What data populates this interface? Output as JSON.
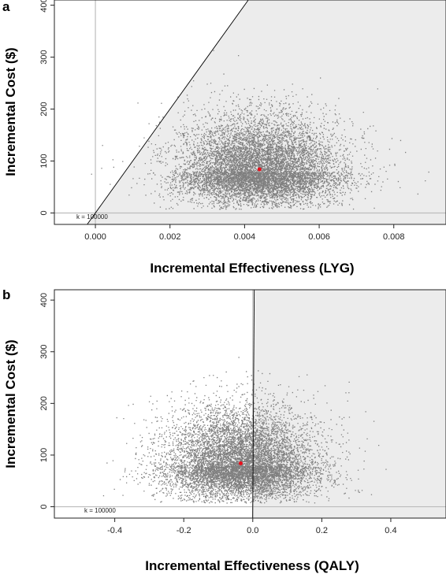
{
  "colors": {
    "points": "#7f7f7f",
    "mean_point": "#e8101c",
    "acceptability_fill": "#ececec",
    "zero_line": "#bdbdbd",
    "threshold_line": "#000000"
  },
  "chart_data": [
    {
      "type": "scatter",
      "panel_label": "a",
      "xlabel": "Incremental Effectiveness (LYG)",
      "ylabel": "Incremental Cost ($)",
      "xlim": [
        -0.0011,
        0.0094
      ],
      "ylim": [
        -22,
        410
      ],
      "x_ticks": [
        0.0,
        0.002,
        0.004,
        0.006,
        0.008
      ],
      "x_tick_labels": [
        "0.000",
        "0.002",
        "0.004",
        "0.006",
        "0.008"
      ],
      "y_ticks": [
        0,
        100,
        200,
        300,
        400
      ],
      "y_tick_labels": [
        "0",
        "100",
        "200",
        "300",
        "400"
      ],
      "threshold_label": "k = 100000",
      "threshold_slope": 100000,
      "grid": false,
      "mean_point": {
        "x": 0.0044,
        "y": 84
      },
      "cloud": {
        "n": 9000,
        "x_mean": 0.0044,
        "x_sd": 0.0011,
        "y_mean": 80,
        "y_sd": 40
      }
    },
    {
      "type": "scatter",
      "panel_label": "b",
      "xlabel": "Incremental Effectiveness (QALY)",
      "ylabel": "Incremental Cost ($)",
      "xlim": [
        -0.575,
        0.56
      ],
      "ylim": [
        -22,
        420
      ],
      "x_ticks": [
        -0.4,
        -0.2,
        0.0,
        0.2,
        0.4
      ],
      "x_tick_labels": [
        "-0.4",
        "-0.2",
        "0.0",
        "0.2",
        "0.4"
      ],
      "y_ticks": [
        0,
        100,
        200,
        300,
        400
      ],
      "y_tick_labels": [
        "0",
        "100",
        "200",
        "300",
        "400"
      ],
      "threshold_label": "k = 100000",
      "threshold_slope": 100000,
      "grid": false,
      "mean_point": {
        "x": -0.035,
        "y": 84
      },
      "cloud": {
        "n": 9000,
        "x_mean": -0.035,
        "x_sd": 0.11,
        "y_mean": 80,
        "y_sd": 42
      }
    }
  ]
}
